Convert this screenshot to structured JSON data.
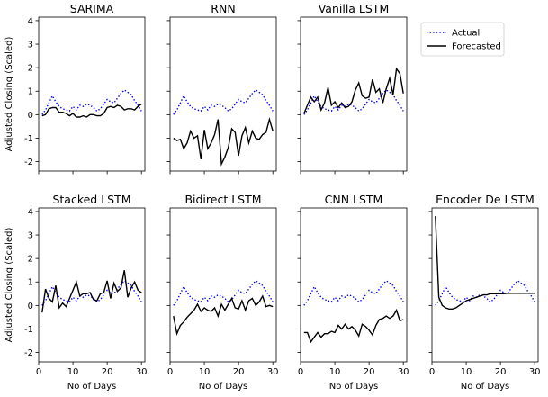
{
  "chart_data": {
    "type": "line",
    "layout": "2x4 small multiples, shared y axis",
    "ylabel": "Adjusted Closing (Scaled)",
    "xlabel": "No of Days",
    "xlim": [
      0,
      31
    ],
    "ylim": [
      -2.4,
      4.15
    ],
    "xticks": [
      0,
      10,
      20,
      30
    ],
    "yticks": [
      -2,
      -1,
      0,
      1,
      2,
      3,
      4
    ],
    "legend": {
      "placement": "right of top row",
      "entries": [
        {
          "name": "Actual",
          "color": "#0000ff",
          "style": "dotted"
        },
        {
          "name": "Forecasted",
          "color": "#000000",
          "style": "solid"
        }
      ]
    },
    "days": [
      1,
      2,
      3,
      4,
      5,
      6,
      7,
      8,
      9,
      10,
      11,
      12,
      13,
      14,
      15,
      16,
      17,
      18,
      19,
      20,
      21,
      22,
      23,
      24,
      25,
      26,
      27,
      28,
      29,
      30
    ],
    "actual": [
      0.0,
      0.2,
      0.5,
      0.8,
      0.55,
      0.35,
      0.25,
      0.2,
      0.15,
      0.35,
      0.2,
      0.4,
      0.35,
      0.45,
      0.4,
      0.3,
      0.15,
      0.25,
      0.45,
      0.65,
      0.55,
      0.5,
      0.7,
      0.9,
      1.05,
      0.95,
      0.85,
      0.6,
      0.4,
      0.15
    ],
    "panels": [
      {
        "title": "SARIMA",
        "forecast": [
          -0.05,
          0.0,
          0.25,
          0.3,
          0.3,
          0.1,
          0.1,
          0.05,
          -0.05,
          0.05,
          -0.1,
          -0.1,
          -0.05,
          -0.1,
          0.0,
          0.0,
          -0.05,
          -0.05,
          0.05,
          0.3,
          0.35,
          0.3,
          0.4,
          0.35,
          0.2,
          0.25,
          0.25,
          0.2,
          0.35,
          0.45
        ]
      },
      {
        "title": "RNN",
        "forecast": [
          -1.0,
          -1.1,
          -1.05,
          -1.45,
          -1.2,
          -0.7,
          -1.0,
          -0.9,
          -1.9,
          -0.65,
          -1.45,
          -1.2,
          -0.85,
          -0.2,
          -2.1,
          -1.8,
          -1.4,
          -0.6,
          -0.75,
          -1.75,
          -0.9,
          -0.55,
          -1.2,
          -0.7,
          -1.0,
          -1.05,
          -0.85,
          -0.75,
          -0.2,
          -0.7
        ]
      },
      {
        "title": "Vanilla LSTM",
        "forecast": [
          0.05,
          0.4,
          0.75,
          0.55,
          0.75,
          0.2,
          0.5,
          1.15,
          0.4,
          0.55,
          0.3,
          0.5,
          0.3,
          0.35,
          0.55,
          1.05,
          1.35,
          0.8,
          0.7,
          0.75,
          1.5,
          0.95,
          1.1,
          0.5,
          1.1,
          1.55,
          0.85,
          1.95,
          1.75,
          0.9
        ]
      },
      {
        "title": "Stacked LSTM",
        "forecast": [
          -0.3,
          0.7,
          0.3,
          0.15,
          0.85,
          -0.1,
          0.1,
          -0.05,
          0.3,
          0.65,
          1.0,
          0.4,
          0.5,
          0.5,
          0.55,
          0.25,
          0.2,
          0.5,
          0.55,
          1.05,
          0.3,
          0.95,
          0.6,
          0.75,
          1.5,
          0.35,
          0.75,
          1.0,
          0.65,
          0.55
        ]
      },
      {
        "title": "Bidirect LSTM",
        "forecast": [
          -0.45,
          -1.2,
          -0.85,
          -0.7,
          -0.5,
          -0.35,
          -0.2,
          0.05,
          -0.25,
          -0.1,
          -0.2,
          -0.25,
          -0.1,
          -0.45,
          0.05,
          -0.2,
          0.05,
          0.3,
          -0.1,
          -0.15,
          0.2,
          -0.2,
          0.2,
          0.3,
          0.0,
          0.15,
          0.4,
          -0.05,
          0.0,
          -0.05
        ]
      },
      {
        "title": "CNN LSTM",
        "forecast": [
          -1.15,
          -1.15,
          -1.55,
          -1.35,
          -1.15,
          -1.35,
          -1.2,
          -1.2,
          -1.1,
          -1.15,
          -0.85,
          -1.0,
          -0.8,
          -1.0,
          -0.9,
          -1.05,
          -1.3,
          -0.8,
          -0.9,
          -1.05,
          -1.25,
          -0.85,
          -0.6,
          -0.55,
          -0.45,
          -0.55,
          -0.45,
          -0.2,
          -0.65,
          -0.6
        ]
      },
      {
        "title": "Encoder De LSTM",
        "forecast": [
          3.8,
          0.35,
          0.0,
          -0.1,
          -0.15,
          -0.15,
          -0.1,
          0.0,
          0.1,
          0.2,
          0.25,
          0.3,
          0.35,
          0.4,
          0.45,
          0.45,
          0.5,
          0.5,
          0.5,
          0.5,
          0.5,
          0.52,
          0.52,
          0.52,
          0.52,
          0.52,
          0.52,
          0.52,
          0.52,
          0.52
        ]
      }
    ]
  }
}
